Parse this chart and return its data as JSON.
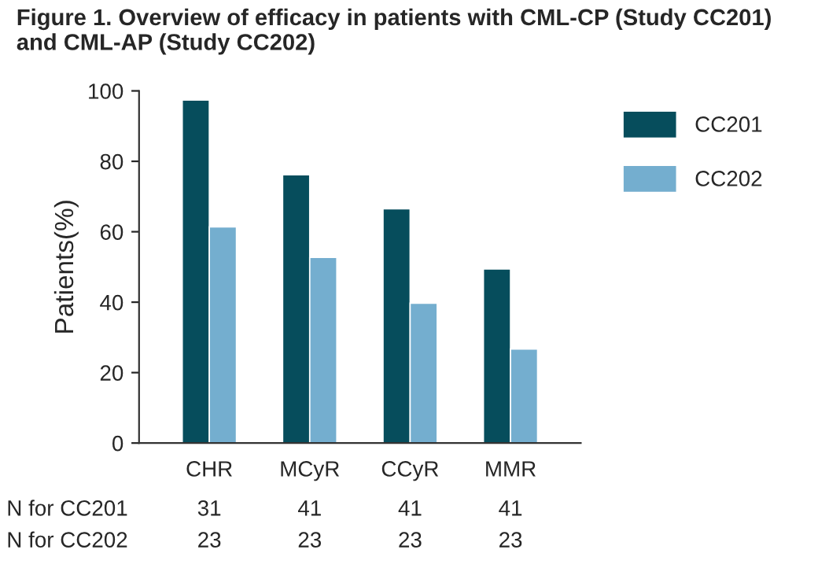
{
  "chart_data": {
    "type": "bar",
    "title": "Figure 1. Overview of efficacy in patients with CML-CP (Study CC201)\nand CML-AP (Study CC202)",
    "ylabel": "Patients(%)",
    "categories": [
      "CHR",
      "MCyR",
      "CCyR",
      "MMR"
    ],
    "series": [
      {
        "name": "CC201",
        "color": "#064d5c",
        "values": [
          97.4,
          76.2,
          66.5,
          49.4
        ]
      },
      {
        "name": "CC202",
        "color": "#74aecf",
        "values": [
          61.4,
          52.7,
          39.7,
          26.7
        ]
      }
    ],
    "ylim": [
      0,
      100
    ],
    "yticks": [
      0,
      20,
      40,
      60,
      80,
      100
    ],
    "grid": false,
    "legend": "top right",
    "annotations": [
      "N for CC201",
      "31",
      "41",
      "41",
      "41",
      "N for CC202",
      "23",
      "23",
      "23",
      "23"
    ]
  }
}
